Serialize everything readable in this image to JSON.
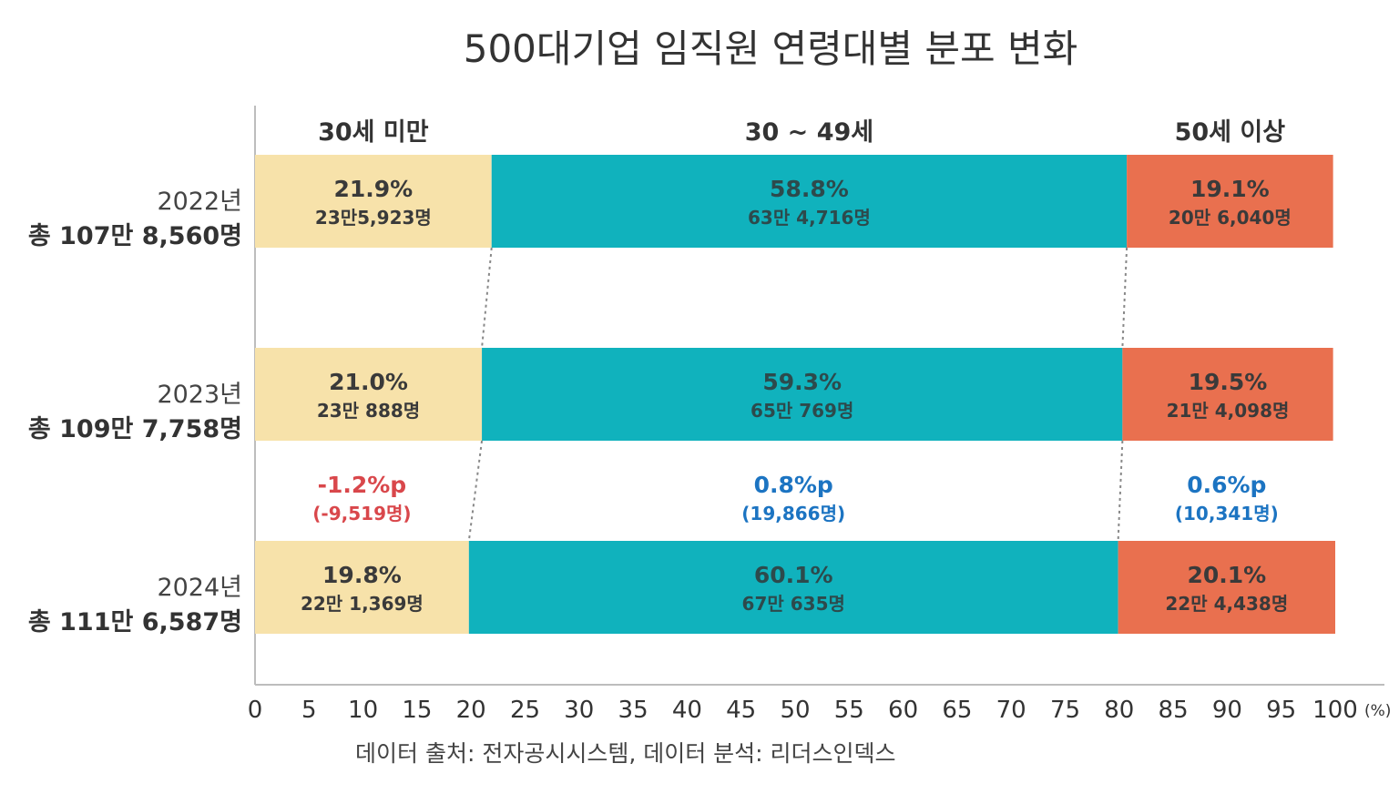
{
  "chart_data": {
    "type": "bar",
    "stacked": true,
    "orientation": "horizontal",
    "title": "500대기업 임직원 연령대별 분포 변화",
    "x_unit": "(%)",
    "xlim": [
      0,
      100
    ],
    "x_ticks": [
      "0",
      "5",
      "10",
      "15",
      "20",
      "25",
      "30",
      "35",
      "40",
      "45",
      "50",
      "55",
      "60",
      "65",
      "70",
      "75",
      "80",
      "85",
      "90",
      "95",
      "100"
    ],
    "categories": [
      {
        "year": "2022년",
        "total": "총 107만 8,560명"
      },
      {
        "year": "2023년",
        "total": "총 109만 7,758명"
      },
      {
        "year": "2024년",
        "total": "총 111만 6,587명"
      }
    ],
    "series": [
      {
        "name": "30세 미만",
        "color": "#F7E2AA",
        "values": [
          21.9,
          21.0,
          19.8
        ],
        "labels": [
          "21.9%",
          "21.0%",
          "19.8%"
        ],
        "counts": [
          "23만5,923명",
          "23만 888명",
          "22만 1,369명"
        ]
      },
      {
        "name": "30 ~ 49세",
        "color": "#10B2BD",
        "values": [
          58.8,
          59.3,
          60.1
        ],
        "labels": [
          "58.8%",
          "59.3%",
          "60.1%"
        ],
        "counts": [
          "63만 4,716명",
          "65만 769명",
          "67만 635명"
        ]
      },
      {
        "name": "50세 이상",
        "color": "#E9704F",
        "values": [
          19.1,
          19.5,
          20.1
        ],
        "labels": [
          "19.1%",
          "19.5%",
          "20.1%"
        ],
        "counts": [
          "20만 6,040명",
          "21만 4,098명",
          "22만 4,438명"
        ]
      }
    ],
    "changes": [
      {
        "pct": "-1.2%p",
        "count": "(-9,519명)",
        "color": "#D9474B"
      },
      {
        "pct": "0.8%p",
        "count": "(19,866명)",
        "color": "#1C74C2"
      },
      {
        "pct": "0.6%p",
        "count": "(10,341명)",
        "color": "#1C74C2"
      }
    ],
    "source": "데이터 출처: 전자공시시스템, 데이터 분석: 리더스인덱스",
    "grid": false
  }
}
